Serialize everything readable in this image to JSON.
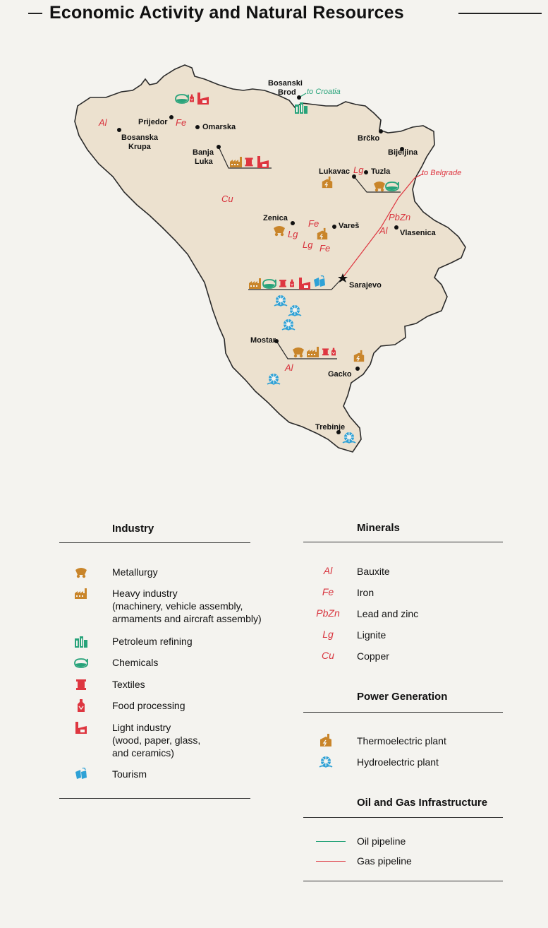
{
  "title": "Economic Activity and Natural Resources",
  "colors": {
    "land": "#ece1cf",
    "outline": "#2a2a2a",
    "metal": "#c9852a",
    "green": "#27a37a",
    "red": "#de3640",
    "blue": "#2ea1d6"
  },
  "cities": {
    "bosanski_brod": "Bosanski\nBrod",
    "prijedor": "Prijedor",
    "omarska": "Omarska",
    "bosanska_krupa": "Bosanska\nKrupa",
    "banja_luka": "Banja\nLuka",
    "brcko": "Brčko",
    "bijeljina": "Bijeljina",
    "lukavac": "Lukavac",
    "tuzla": "Tuzla",
    "zenica": "Zenica",
    "vares": "Vareš",
    "vlasenica": "Vlasenica",
    "sarajevo": "Sarajevo",
    "mostar": "Mostar",
    "gacko": "Gacko",
    "trebinje": "Trebinje"
  },
  "pipeline_labels": {
    "croatia": "to Croatia",
    "belgrade": "to Belgrade"
  },
  "map_minerals": [
    "Al",
    "Fe",
    "Cu",
    "Lg",
    "PbZn",
    "Al",
    "Fe",
    "Lg",
    "Lg",
    "Fe",
    "Al"
  ],
  "legend": {
    "industry": {
      "heading": "Industry",
      "items": [
        {
          "icon": "metallurgy-icon",
          "label": "Metallurgy"
        },
        {
          "icon": "heavy-industry-icon",
          "label": "Heavy industry\n(machinery, vehicle assembly,\narmaments and aircraft assembly)"
        },
        {
          "icon": "petroleum-refining-icon",
          "label": "Petroleum refining"
        },
        {
          "icon": "chemicals-icon",
          "label": "Chemicals"
        },
        {
          "icon": "textiles-icon",
          "label": "Textiles"
        },
        {
          "icon": "food-processing-icon",
          "label": "Food processing"
        },
        {
          "icon": "light-industry-icon",
          "label": "Light industry\n(wood, paper, glass,\nand ceramics)"
        },
        {
          "icon": "tourism-icon",
          "label": "Tourism"
        }
      ]
    },
    "minerals": {
      "heading": "Minerals",
      "items": [
        {
          "symbol": "Al",
          "label": "Bauxite"
        },
        {
          "symbol": "Fe",
          "label": "Iron"
        },
        {
          "symbol": "PbZn",
          "label": "Lead and zinc"
        },
        {
          "symbol": "Lg",
          "label": "Lignite"
        },
        {
          "symbol": "Cu",
          "label": "Copper"
        }
      ]
    },
    "power": {
      "heading": "Power Generation",
      "items": [
        {
          "icon": "thermoelectric-plant-icon",
          "label": "Thermoelectric plant"
        },
        {
          "icon": "hydroelectric-plant-icon",
          "label": "Hydroelectric plant"
        }
      ]
    },
    "oilgas": {
      "heading": "Oil and Gas Infrastructure",
      "items": [
        {
          "line": "green",
          "label": "Oil pipeline"
        },
        {
          "line": "red",
          "label": "Gas pipeline"
        }
      ]
    }
  }
}
